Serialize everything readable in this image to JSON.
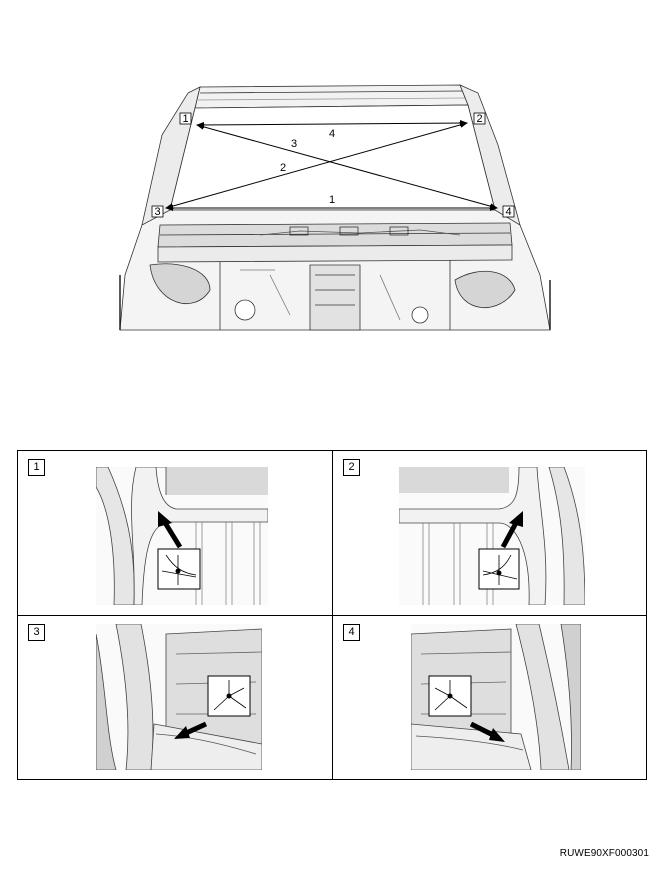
{
  "overview": {
    "corner_tags": [
      "1",
      "2",
      "3",
      "4"
    ],
    "measure_labels": [
      "1",
      "2",
      "3",
      "4"
    ]
  },
  "details": [
    {
      "tag": "1"
    },
    {
      "tag": "2"
    },
    {
      "tag": "3"
    },
    {
      "tag": "4"
    }
  ],
  "doc_code": "RUWE90XF000301"
}
